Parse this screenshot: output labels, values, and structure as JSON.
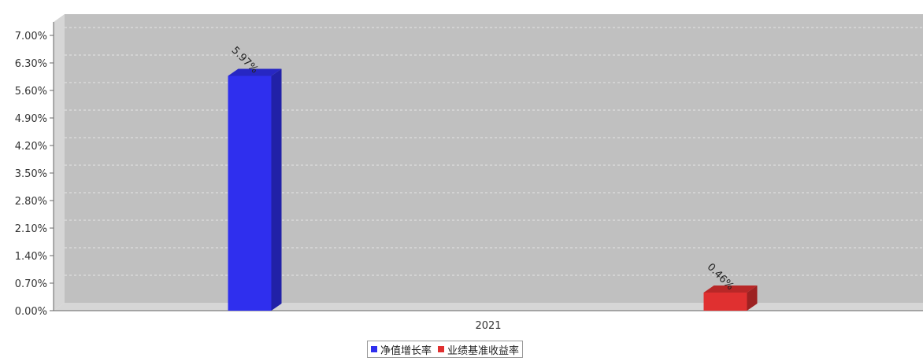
{
  "chart_data": {
    "type": "bar",
    "title": "",
    "categories": [
      "2021"
    ],
    "series": [
      {
        "name": "净值增长率",
        "values": [
          5.97
        ],
        "label": "5.97%",
        "color": "#2f2fee"
      },
      {
        "name": "业绩基准收益率",
        "values": [
          0.46
        ],
        "label": "0.46%",
        "color": "#e03030"
      }
    ],
    "ylim": [
      0,
      7.0
    ],
    "yticks": [
      "0.00%",
      "0.70%",
      "1.40%",
      "2.10%",
      "2.80%",
      "3.50%",
      "4.20%",
      "4.90%",
      "5.60%",
      "6.30%",
      "7.00%"
    ],
    "grid": true,
    "legend_position": "bottom"
  }
}
